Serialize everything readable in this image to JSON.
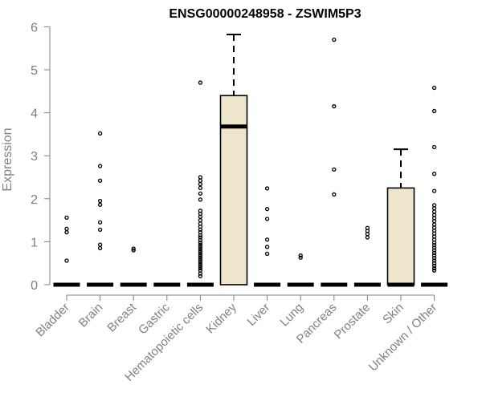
{
  "chart_data": {
    "type": "box",
    "title": "ENSG00000248958 - ZSWIM5P3",
    "ylabel": "Expression",
    "xlabel": "",
    "ylim": [
      0,
      6
    ],
    "yticks": [
      0,
      1,
      2,
      3,
      4,
      5,
      6
    ],
    "box_fill": "#ede6cc",
    "categories": [
      "Bladder",
      "Brain",
      "Breast",
      "Gastric",
      "Hematopoietic cells",
      "Kidney",
      "Liver",
      "Lung",
      "Pancreas",
      "Prostate",
      "Skin",
      "Unknown / Other"
    ],
    "boxes": [
      {
        "q1": 0,
        "median": 0,
        "q3": 0,
        "whisker_low": 0,
        "whisker_high": 0
      },
      {
        "q1": 0,
        "median": 0,
        "q3": 0,
        "whisker_low": 0,
        "whisker_high": 0
      },
      {
        "q1": 0,
        "median": 0,
        "q3": 0,
        "whisker_low": 0,
        "whisker_high": 0
      },
      {
        "q1": 0,
        "median": 0,
        "q3": 0,
        "whisker_low": 0,
        "whisker_high": 0
      },
      {
        "q1": 0,
        "median": 0,
        "q3": 0,
        "whisker_low": 0,
        "whisker_high": 0
      },
      {
        "q1": 0,
        "median": 3.68,
        "q3": 4.4,
        "whisker_low": 0,
        "whisker_high": 5.82
      },
      {
        "q1": 0,
        "median": 0,
        "q3": 0,
        "whisker_low": 0,
        "whisker_high": 0
      },
      {
        "q1": 0,
        "median": 0,
        "q3": 0,
        "whisker_low": 0,
        "whisker_high": 0
      },
      {
        "q1": 0,
        "median": 0,
        "q3": 0,
        "whisker_low": 0,
        "whisker_high": 0
      },
      {
        "q1": 0,
        "median": 0,
        "q3": 0,
        "whisker_low": 0,
        "whisker_high": 0
      },
      {
        "q1": 0,
        "median": 0,
        "q3": 2.25,
        "whisker_low": 0,
        "whisker_high": 3.15
      },
      {
        "q1": 0,
        "median": 0,
        "q3": 0,
        "whisker_low": 0,
        "whisker_high": 0
      }
    ],
    "outliers": [
      [
        1.56,
        1.3,
        1.22,
        0.56
      ],
      [
        3.52,
        2.76,
        2.42,
        1.95,
        1.86,
        1.45,
        1.28,
        0.93,
        0.85
      ],
      [
        0.84,
        0.8
      ],
      [],
      [
        4.7,
        2.5,
        2.42,
        2.34,
        2.25,
        2.12,
        1.98,
        1.72,
        1.65,
        1.58,
        1.5,
        1.42,
        1.35,
        1.28,
        1.22,
        1.15,
        1.1,
        1.04,
        0.98,
        0.93,
        0.88,
        0.83,
        0.78,
        0.73,
        0.68,
        0.63,
        0.58,
        0.53,
        0.48,
        0.43,
        0.38,
        0.33,
        0.26,
        0.2
      ],
      [],
      [
        2.24,
        1.76,
        1.53,
        1.05,
        0.88,
        0.72
      ],
      [
        0.68,
        0.63
      ],
      [
        5.7,
        4.15,
        2.68,
        2.1
      ],
      [
        1.32,
        1.25,
        1.18,
        1.1
      ],
      [],
      [
        4.58,
        4.04,
        3.2,
        2.58,
        2.18,
        1.85,
        1.78,
        1.7,
        1.62,
        1.55,
        1.48,
        1.4,
        1.33,
        1.26,
        1.19,
        1.12,
        1.05,
        0.98,
        0.92,
        0.86,
        0.8,
        0.74,
        0.68,
        0.62,
        0.56,
        0.5,
        0.44,
        0.38,
        0.33
      ]
    ]
  }
}
